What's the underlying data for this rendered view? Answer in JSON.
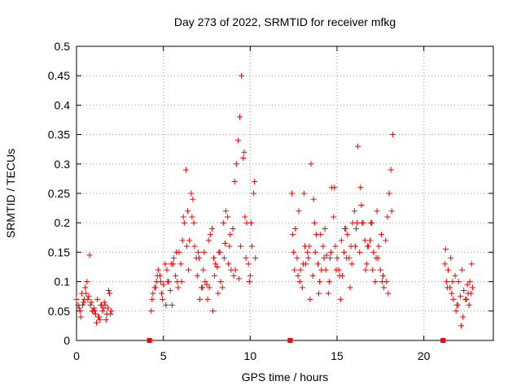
{
  "chart_data": {
    "type": "scatter",
    "title": "Day 273 of 2022, SRMTID for receiver mfkg",
    "xlabel": "GPS time / hours",
    "ylabel": "SRMTID / TECUs",
    "xlim": [
      0,
      24
    ],
    "ylim": [
      0,
      0.5
    ],
    "xticks": [
      0,
      5,
      10,
      15,
      20
    ],
    "xtick_labels": [
      "0",
      "5",
      "10",
      "15",
      "20"
    ],
    "yticks": [
      0,
      0.05,
      0.1,
      0.15,
      0.2,
      0.25,
      0.3,
      0.35,
      0.4,
      0.45,
      0.5
    ],
    "ytick_labels": [
      "0",
      "0.05",
      "0.1",
      "0.15",
      "0.2",
      "0.25",
      "0.3",
      "0.35",
      "0.4",
      "0.45",
      "0.5"
    ],
    "grid": true,
    "marker": "plus",
    "color": "#ff0000",
    "series": [
      {
        "name": "SRMTID",
        "x": [
          0.0,
          0.1,
          0.2,
          0.3,
          0.4,
          0.5,
          0.6,
          0.7,
          0.8,
          0.9,
          1.0,
          1.1,
          1.2,
          1.3,
          1.4,
          1.5,
          1.6,
          1.7,
          1.8,
          1.9,
          2.0,
          0.15,
          0.45,
          0.75,
          1.05,
          1.35,
          1.65,
          1.95,
          0.25,
          0.55,
          0.85,
          1.15,
          1.45,
          1.75,
          0.35,
          0.65,
          0.95,
          1.25,
          1.55,
          1.85,
          4.3,
          4.4,
          4.5,
          4.6,
          4.7,
          4.8,
          4.9,
          5.0,
          5.1,
          5.2,
          5.3,
          5.4,
          5.5,
          5.6,
          5.7,
          5.8,
          5.9,
          6.0,
          6.1,
          6.2,
          6.3,
          6.4,
          6.5,
          6.6,
          6.7,
          6.8,
          6.9,
          7.0,
          7.1,
          7.2,
          7.3,
          7.4,
          7.5,
          7.6,
          7.7,
          7.8,
          7.9,
          8.0,
          8.1,
          8.2,
          8.3,
          8.4,
          8.5,
          8.6,
          8.7,
          8.8,
          8.9,
          9.0,
          9.1,
          9.2,
          9.3,
          9.4,
          9.5,
          9.6,
          9.7,
          9.8,
          9.9,
          10.0,
          10.1,
          10.2,
          10.3,
          4.35,
          4.65,
          4.95,
          5.25,
          5.55,
          5.85,
          6.15,
          6.45,
          6.75,
          7.05,
          7.35,
          7.65,
          7.95,
          8.25,
          8.55,
          8.85,
          9.15,
          9.45,
          9.75,
          10.05,
          4.55,
          4.85,
          5.15,
          5.45,
          5.75,
          6.05,
          6.35,
          6.65,
          6.95,
          7.25,
          7.55,
          7.85,
          8.15,
          8.45,
          8.75,
          9.05,
          9.35,
          9.65,
          9.95,
          10.25,
          12.4,
          12.5,
          12.6,
          12.7,
          12.8,
          12.9,
          13.0,
          13.1,
          13.2,
          13.3,
          13.4,
          13.5,
          13.6,
          13.7,
          13.8,
          13.9,
          14.0,
          14.1,
          14.2,
          14.3,
          14.4,
          14.5,
          14.6,
          14.7,
          14.8,
          14.9,
          15.0,
          15.1,
          15.2,
          15.3,
          15.4,
          15.5,
          15.6,
          15.7,
          15.8,
          15.9,
          16.0,
          16.1,
          16.2,
          16.3,
          16.4,
          16.5,
          16.6,
          16.7,
          16.8,
          16.9,
          17.0,
          17.1,
          17.2,
          17.3,
          17.4,
          17.5,
          17.6,
          17.7,
          17.8,
          17.9,
          18.0,
          18.1,
          18.2,
          12.45,
          12.75,
          13.05,
          13.35,
          13.65,
          13.95,
          14.25,
          14.55,
          14.85,
          15.15,
          15.45,
          15.75,
          16.05,
          16.35,
          16.65,
          16.95,
          17.25,
          17.55,
          17.85,
          18.15,
          12.55,
          12.85,
          13.15,
          13.45,
          13.75,
          14.05,
          14.35,
          14.65,
          14.95,
          15.25,
          15.55,
          15.85,
          16.15,
          16.45,
          16.75,
          17.05,
          17.35,
          17.65,
          17.95,
          21.2,
          21.3,
          21.4,
          21.5,
          21.6,
          21.7,
          21.8,
          21.9,
          22.0,
          22.1,
          22.2,
          22.3,
          22.4,
          22.5,
          22.6,
          22.7,
          22.8,
          21.25,
          21.55,
          21.85,
          22.15,
          22.45,
          22.75,
          21.35,
          21.65,
          21.95,
          22.25,
          22.55,
          22.65
        ],
        "y": [
          0.07,
          0.06,
          0.05,
          0.08,
          0.065,
          0.09,
          0.1,
          0.075,
          0.06,
          0.05,
          0.055,
          0.045,
          0.07,
          0.04,
          0.06,
          0.05,
          0.065,
          0.035,
          0.055,
          0.08,
          0.05,
          0.055,
          0.07,
          0.145,
          0.05,
          0.035,
          0.06,
          0.045,
          0.04,
          0.08,
          0.065,
          0.03,
          0.06,
          0.045,
          0.06,
          0.07,
          0.05,
          0.04,
          0.055,
          0.085,
          0.05,
          0.08,
          0.09,
          0.1,
          0.12,
          0.11,
          0.08,
          0.095,
          0.13,
          0.12,
          0.1,
          0.085,
          0.06,
          0.14,
          0.11,
          0.1,
          0.15,
          0.13,
          0.17,
          0.2,
          0.29,
          0.22,
          0.17,
          0.25,
          0.24,
          0.16,
          0.14,
          0.15,
          0.07,
          0.09,
          0.12,
          0.1,
          0.095,
          0.17,
          0.18,
          0.19,
          0.14,
          0.13,
          0.125,
          0.15,
          0.1,
          0.09,
          0.14,
          0.22,
          0.21,
          0.16,
          0.12,
          0.19,
          0.27,
          0.3,
          0.34,
          0.38,
          0.45,
          0.31,
          0.21,
          0.2,
          0.13,
          0.11,
          0.16,
          0.25,
          0.14,
          0.07,
          0.11,
          0.07,
          0.1,
          0.13,
          0.09,
          0.21,
          0.12,
          0.2,
          0.14,
          0.15,
          0.09,
          0.11,
          0.15,
          0.165,
          0.18,
          0.12,
          0.16,
          0.14,
          0.2,
          0.09,
          0.1,
          0.06,
          0.13,
          0.15,
          0.1,
          0.16,
          0.21,
          0.11,
          0.09,
          0.07,
          0.05,
          0.08,
          0.2,
          0.13,
          0.11,
          0.105,
          0.32,
          0.1,
          0.27,
          0.25,
          0.15,
          0.19,
          0.14,
          0.22,
          0.12,
          0.09,
          0.25,
          0.13,
          0.15,
          0.16,
          0.3,
          0.11,
          0.2,
          0.18,
          0.13,
          0.1,
          0.12,
          0.16,
          0.19,
          0.145,
          0.08,
          0.14,
          0.26,
          0.21,
          0.16,
          0.14,
          0.12,
          0.07,
          0.11,
          0.15,
          0.19,
          0.18,
          0.14,
          0.16,
          0.2,
          0.22,
          0.19,
          0.33,
          0.15,
          0.23,
          0.2,
          0.17,
          0.13,
          0.16,
          0.17,
          0.2,
          0.15,
          0.1,
          0.22,
          0.16,
          0.12,
          0.1,
          0.09,
          0.17,
          0.21,
          0.25,
          0.29,
          0.35,
          0.18,
          0.11,
          0.13,
          0.14,
          0.24,
          0.08,
          0.14,
          0.1,
          0.26,
          0.11,
          0.19,
          0.09,
          0.16,
          0.26,
          0.12,
          0.2,
          0.14,
          0.18,
          0.1,
          0.22,
          0.12,
          0.1,
          0.16,
          0.07,
          0.15,
          0.18,
          0.12,
          0.15,
          0.12,
          0.17,
          0.14,
          0.13,
          0.2,
          0.2,
          0.16,
          0.12,
          0.14,
          0.11,
          0.08,
          0.13,
          0.1,
          0.12,
          0.09,
          0.08,
          0.07,
          0.11,
          0.06,
          0.1,
          0.075,
          0.12,
          0.085,
          0.07,
          0.095,
          0.06,
          0.08,
          0.09,
          0.155,
          0.14,
          0.05,
          0.025,
          0.07,
          0.13,
          0.09,
          0.1,
          0.06,
          0.04,
          0.08,
          0.1
        ]
      },
      {
        "name": "data gap markers",
        "x": [
          4.2,
          12.3,
          21.1
        ],
        "y": [
          0,
          0,
          0
        ]
      }
    ]
  }
}
